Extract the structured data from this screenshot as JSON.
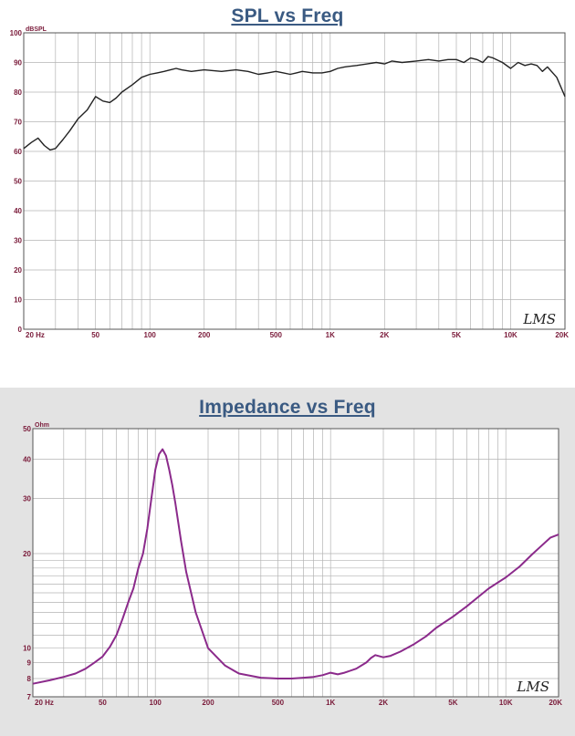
{
  "charts": {
    "spl": {
      "title": "SPL vs Freq",
      "unit_label": "dBSPL",
      "watermark": "LMS",
      "x_tick_labels": [
        "20 Hz",
        "50",
        "100",
        "200",
        "500",
        "1K",
        "2K",
        "5K",
        "10K",
        "20K"
      ],
      "y_tick_labels": [
        "0",
        "10",
        "20",
        "30",
        "40",
        "50",
        "60",
        "70",
        "80",
        "90",
        "100"
      ]
    },
    "impedance": {
      "title": "Impedance vs Freq",
      "unit_label": "Ohm",
      "watermark": "LMS",
      "x_tick_labels": [
        "20 Hz",
        "50",
        "100",
        "200",
        "500",
        "1K",
        "2K",
        "5K",
        "10K",
        "20K"
      ],
      "y_tick_labels": [
        "7",
        "8",
        "9",
        "10",
        "20",
        "30",
        "40",
        "50"
      ]
    }
  },
  "colors": {
    "title": "#3a5a82",
    "tick_label": "#7a1b3a",
    "grid": "#b4b4b4",
    "spl_line": "#222222",
    "impedance_line": "#8b2a8b",
    "impedance_background": "#e3e3e3"
  },
  "chart_data": [
    {
      "type": "line",
      "title": "SPL vs Freq",
      "xlabel": "",
      "ylabel": "dBSPL",
      "x_scale": "log",
      "xlim": [
        20,
        20000
      ],
      "ylim": [
        0,
        100
      ],
      "grid": true,
      "series": [
        {
          "x": [
            20,
            22,
            24,
            26,
            28,
            30,
            33,
            36,
            40,
            45,
            50,
            55,
            60,
            65,
            70,
            80,
            90,
            100,
            110,
            120,
            130,
            140,
            150,
            170,
            200,
            250,
            300,
            350,
            400,
            450,
            500,
            550,
            600,
            650,
            700,
            800,
            900,
            1000,
            1100,
            1200,
            1400,
            1600,
            1800,
            2000,
            2200,
            2500,
            3000,
            3500,
            4000,
            4500,
            5000,
            5500,
            6000,
            6500,
            7000,
            7500,
            8000,
            9000,
            10000,
            11000,
            12000,
            13000,
            14000,
            15000,
            16000,
            18000,
            20000
          ],
          "values": [
            61,
            63,
            64.5,
            62,
            60.5,
            61,
            64,
            67,
            71,
            74,
            78.5,
            77,
            76.5,
            78,
            80,
            82.5,
            85,
            86,
            86.5,
            87,
            87.5,
            88,
            87.5,
            87,
            87.5,
            87,
            87.5,
            87,
            86,
            86.5,
            87,
            86.5,
            86,
            86.5,
            87,
            86.5,
            86.5,
            87,
            88,
            88.5,
            89,
            89.5,
            90,
            89.5,
            90.5,
            90,
            90.5,
            91,
            90.5,
            91,
            91,
            90,
            91.5,
            91,
            90,
            92,
            91.5,
            90,
            88,
            90,
            89,
            89.5,
            89,
            87,
            88.5,
            85,
            78.5
          ]
        }
      ]
    },
    {
      "type": "line",
      "title": "Impedance vs Freq",
      "xlabel": "",
      "ylabel": "Ohm",
      "x_scale": "log",
      "y_scale": "log",
      "xlim": [
        20,
        20000
      ],
      "ylim": [
        7,
        50
      ],
      "grid": true,
      "series": [
        {
          "x": [
            20,
            25,
            30,
            35,
            40,
            45,
            50,
            55,
            60,
            65,
            70,
            75,
            80,
            85,
            90,
            95,
            100,
            105,
            110,
            115,
            120,
            125,
            130,
            140,
            150,
            170,
            200,
            250,
            300,
            400,
            500,
            600,
            700,
            800,
            900,
            1000,
            1100,
            1200,
            1400,
            1600,
            1700,
            1800,
            2000,
            2200,
            2500,
            3000,
            3500,
            4000,
            5000,
            6000,
            7000,
            8000,
            10000,
            12000,
            14000,
            16000,
            18000,
            20000
          ],
          "values": [
            7.7,
            7.9,
            8.1,
            8.3,
            8.6,
            9.0,
            9.4,
            10.1,
            11.0,
            12.4,
            14.0,
            15.5,
            18.0,
            20.0,
            24.0,
            30.0,
            37.0,
            41.5,
            43.0,
            41.0,
            37.0,
            33.0,
            29.0,
            22.0,
            17.5,
            13.0,
            10.0,
            8.8,
            8.3,
            8.05,
            8.0,
            8.0,
            8.05,
            8.1,
            8.2,
            8.35,
            8.25,
            8.35,
            8.6,
            9.0,
            9.3,
            9.5,
            9.35,
            9.45,
            9.75,
            10.3,
            10.9,
            11.6,
            12.6,
            13.6,
            14.6,
            15.5,
            16.8,
            18.2,
            19.8,
            21.2,
            22.5,
            23.0
          ]
        }
      ]
    }
  ]
}
